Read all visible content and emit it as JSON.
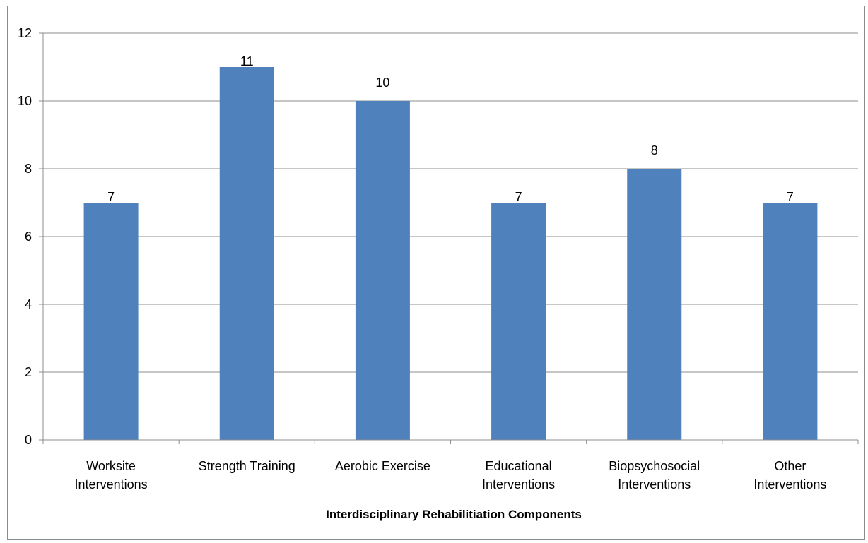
{
  "chart_data": {
    "type": "bar",
    "categories": [
      [
        "Worksite",
        "Interventions"
      ],
      [
        "Strength Training"
      ],
      [
        "Aerobic Exercise"
      ],
      [
        "Educational",
        "Interventions"
      ],
      [
        "Biopsychosocial",
        "Interventions"
      ],
      [
        "Other",
        "Interventions"
      ]
    ],
    "values": [
      7,
      11,
      10,
      7,
      8,
      7
    ],
    "data_labels": [
      "7",
      "11",
      "10",
      "7",
      "8",
      "7"
    ],
    "xlabel": "Interdisciplinary Rehabilitiation Components",
    "ylabel": "",
    "ylim": [
      0,
      12
    ],
    "yticks": [
      0,
      2,
      4,
      6,
      8,
      10,
      12
    ],
    "grid": true,
    "legend": "none",
    "colors": {
      "bar": "#4f81bd",
      "grid": "#8c8c8c",
      "axis": "#8c8c8c"
    }
  }
}
